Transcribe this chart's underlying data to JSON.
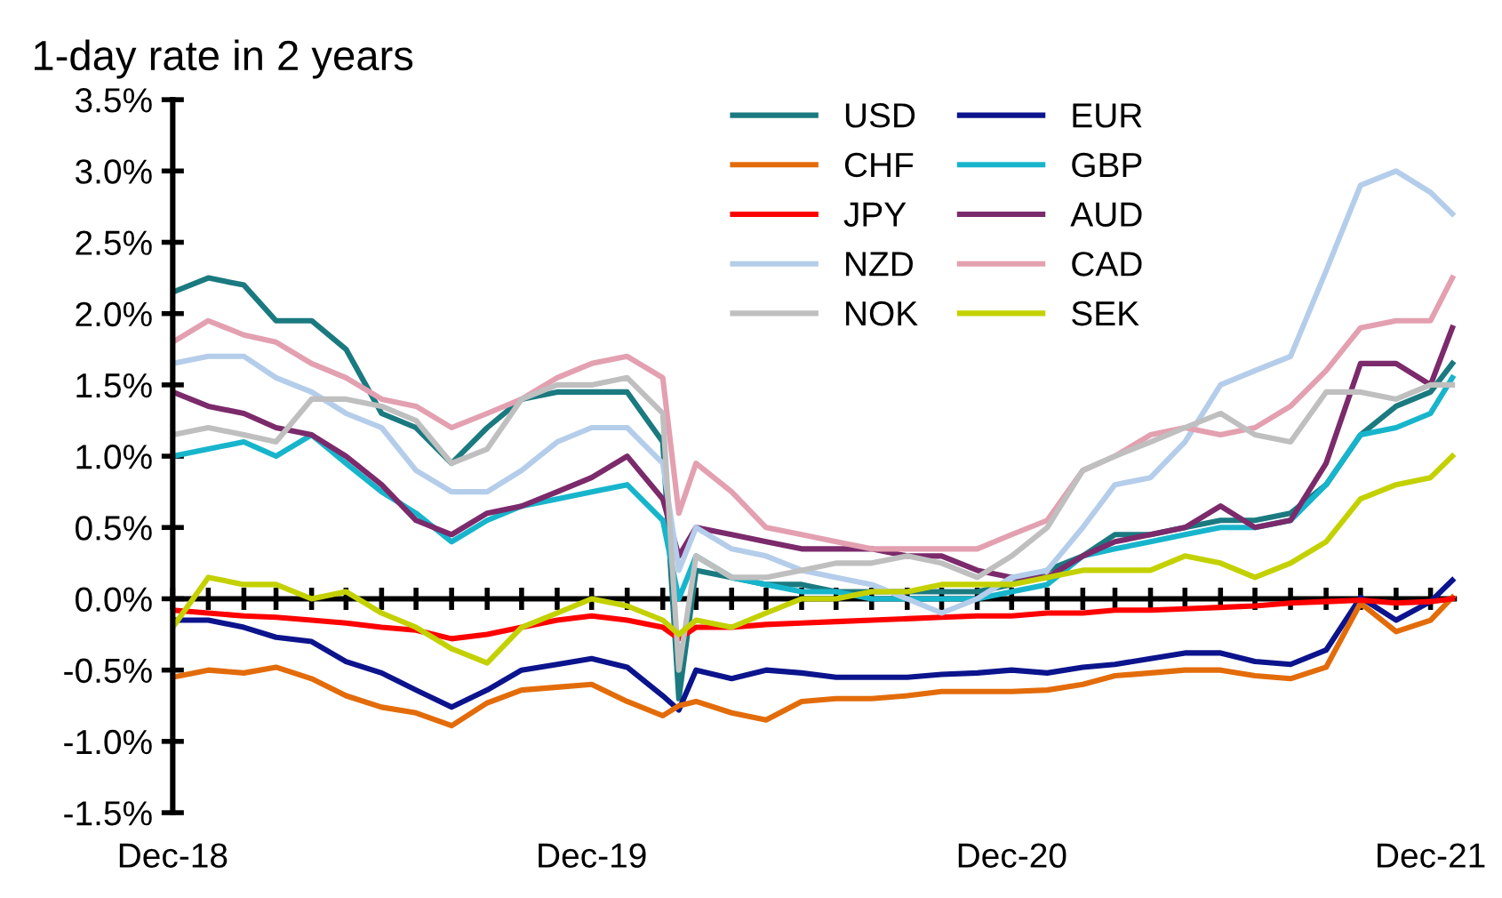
{
  "chart_data": {
    "type": "line",
    "title": "1-day rate in 2 years",
    "x": [
      "2018-12-01",
      "2019-01-01",
      "2019-02-01",
      "2019-03-01",
      "2019-04-01",
      "2019-05-01",
      "2019-06-01",
      "2019-07-01",
      "2019-08-01",
      "2019-09-01",
      "2019-10-01",
      "2019-11-01",
      "2019-12-01",
      "2020-01-01",
      "2020-02-01",
      "2020-02-15",
      "2020-03-01",
      "2020-04-01",
      "2020-05-01",
      "2020-06-01",
      "2020-07-01",
      "2020-08-01",
      "2020-09-01",
      "2020-10-01",
      "2020-11-01",
      "2020-12-01",
      "2021-01-01",
      "2021-02-01",
      "2021-03-01",
      "2021-04-01",
      "2021-05-01",
      "2021-06-01",
      "2021-07-01",
      "2021-08-01",
      "2021-09-01",
      "2021-10-01",
      "2021-11-01",
      "2021-12-01",
      "2021-12-20"
    ],
    "series": [
      {
        "name": "USD",
        "color": "#1a7a80",
        "values": [
          2.15,
          2.25,
          2.2,
          1.95,
          1.95,
          1.75,
          1.3,
          1.2,
          0.95,
          1.2,
          1.4,
          1.45,
          1.45,
          1.45,
          1.1,
          -0.7,
          0.2,
          0.15,
          0.1,
          0.1,
          0.05,
          0.05,
          0.05,
          0.05,
          0.05,
          0.1,
          0.2,
          0.3,
          0.45,
          0.45,
          0.5,
          0.55,
          0.55,
          0.6,
          0.8,
          1.15,
          1.35,
          1.45,
          1.65
        ]
      },
      {
        "name": "EUR",
        "color": "#0b148c",
        "values": [
          -0.15,
          -0.15,
          -0.2,
          -0.27,
          -0.3,
          -0.44,
          -0.52,
          -0.64,
          -0.76,
          -0.64,
          -0.5,
          -0.46,
          -0.42,
          -0.48,
          -0.68,
          -0.78,
          -0.5,
          -0.56,
          -0.5,
          -0.52,
          -0.55,
          -0.55,
          -0.55,
          -0.53,
          -0.52,
          -0.5,
          -0.52,
          -0.48,
          -0.46,
          -0.42,
          -0.38,
          -0.38,
          -0.44,
          -0.46,
          -0.36,
          0.01,
          -0.15,
          -0.02,
          0.13
        ]
      },
      {
        "name": "CHF",
        "color": "#e36c0a",
        "values": [
          -0.55,
          -0.5,
          -0.52,
          -0.48,
          -0.56,
          -0.68,
          -0.76,
          -0.8,
          -0.89,
          -0.73,
          -0.64,
          -0.62,
          -0.6,
          -0.72,
          -0.82,
          -0.75,
          -0.72,
          -0.8,
          -0.85,
          -0.72,
          -0.7,
          -0.7,
          -0.68,
          -0.65,
          -0.65,
          -0.65,
          -0.64,
          -0.6,
          -0.54,
          -0.52,
          -0.5,
          -0.5,
          -0.54,
          -0.56,
          -0.48,
          -0.03,
          -0.23,
          -0.15,
          0.01
        ]
      },
      {
        "name": "GBP",
        "color": "#17b5cc",
        "values": [
          1.0,
          1.05,
          1.1,
          1.0,
          1.15,
          0.95,
          0.75,
          0.6,
          0.4,
          0.55,
          0.65,
          0.7,
          0.75,
          0.8,
          0.55,
          0.0,
          0.3,
          0.15,
          0.1,
          0.05,
          0.05,
          0.0,
          0.0,
          0.0,
          0.0,
          0.05,
          0.1,
          0.3,
          0.35,
          0.4,
          0.45,
          0.5,
          0.5,
          0.55,
          0.8,
          1.15,
          1.2,
          1.3,
          1.55
        ]
      },
      {
        "name": "JPY",
        "color": "#ff0000",
        "values": [
          -0.08,
          -0.1,
          -0.12,
          -0.13,
          -0.15,
          -0.17,
          -0.2,
          -0.22,
          -0.28,
          -0.25,
          -0.2,
          -0.15,
          -0.12,
          -0.15,
          -0.2,
          -0.28,
          -0.2,
          -0.2,
          -0.18,
          -0.17,
          -0.16,
          -0.15,
          -0.14,
          -0.13,
          -0.12,
          -0.12,
          -0.1,
          -0.1,
          -0.08,
          -0.08,
          -0.07,
          -0.06,
          -0.05,
          -0.03,
          -0.02,
          -0.01,
          -0.03,
          -0.02,
          0.0
        ]
      },
      {
        "name": "AUD",
        "color": "#7b2a6b",
        "values": [
          1.45,
          1.35,
          1.3,
          1.2,
          1.15,
          1.0,
          0.8,
          0.55,
          0.45,
          0.6,
          0.65,
          0.75,
          0.85,
          1.0,
          0.7,
          0.3,
          0.5,
          0.45,
          0.4,
          0.35,
          0.35,
          0.35,
          0.3,
          0.3,
          0.2,
          0.15,
          0.15,
          0.3,
          0.4,
          0.45,
          0.5,
          0.65,
          0.5,
          0.55,
          0.95,
          1.65,
          1.65,
          1.5,
          1.9
        ]
      },
      {
        "name": "NZD",
        "color": "#b4cdea",
        "values": [
          1.65,
          1.7,
          1.7,
          1.55,
          1.45,
          1.3,
          1.2,
          0.9,
          0.75,
          0.75,
          0.9,
          1.1,
          1.2,
          1.2,
          0.95,
          0.2,
          0.5,
          0.35,
          0.3,
          0.2,
          0.15,
          0.1,
          0.0,
          -0.1,
          0.0,
          0.15,
          0.2,
          0.5,
          0.8,
          0.85,
          1.1,
          1.5,
          1.6,
          1.7,
          2.3,
          2.9,
          3.0,
          2.85,
          2.7
        ]
      },
      {
        "name": "CAD",
        "color": "#e3a0b0",
        "values": [
          1.8,
          1.95,
          1.85,
          1.8,
          1.65,
          1.55,
          1.4,
          1.35,
          1.2,
          1.3,
          1.4,
          1.55,
          1.65,
          1.7,
          1.55,
          0.6,
          0.95,
          0.75,
          0.5,
          0.45,
          0.4,
          0.35,
          0.35,
          0.35,
          0.35,
          0.45,
          0.55,
          0.9,
          1.0,
          1.15,
          1.2,
          1.15,
          1.2,
          1.35,
          1.6,
          1.9,
          1.95,
          1.95,
          2.25
        ]
      },
      {
        "name": "NOK",
        "color": "#bfbfbf",
        "values": [
          1.15,
          1.2,
          1.15,
          1.1,
          1.4,
          1.4,
          1.35,
          1.25,
          0.95,
          1.05,
          1.4,
          1.5,
          1.5,
          1.55,
          1.3,
          -0.5,
          0.3,
          0.15,
          0.15,
          0.2,
          0.25,
          0.25,
          0.3,
          0.25,
          0.15,
          0.3,
          0.5,
          0.9,
          1.0,
          1.1,
          1.2,
          1.3,
          1.15,
          1.1,
          1.45,
          1.45,
          1.4,
          1.5,
          1.5
        ]
      },
      {
        "name": "SEK",
        "color": "#c4d100",
        "values": [
          -0.2,
          0.15,
          0.1,
          0.1,
          0.0,
          0.05,
          -0.1,
          -0.2,
          -0.35,
          -0.45,
          -0.2,
          -0.1,
          0.0,
          -0.05,
          -0.15,
          -0.25,
          -0.15,
          -0.2,
          -0.1,
          0.0,
          0.0,
          0.05,
          0.05,
          0.1,
          0.1,
          0.1,
          0.15,
          0.2,
          0.2,
          0.2,
          0.3,
          0.25,
          0.15,
          0.25,
          0.4,
          0.7,
          0.8,
          0.85,
          1.0
        ]
      }
    ],
    "xlim": [
      "2018-12-01",
      "2021-12-24"
    ],
    "xticks": [
      {
        "value": "2018-12-01",
        "label": "Dec-18"
      },
      {
        "value": "2019-01-01",
        "label": null
      },
      {
        "value": "2019-02-01",
        "label": null
      },
      {
        "value": "2019-03-01",
        "label": null
      },
      {
        "value": "2019-04-01",
        "label": null
      },
      {
        "value": "2019-05-01",
        "label": null
      },
      {
        "value": "2019-06-01",
        "label": null
      },
      {
        "value": "2019-07-01",
        "label": null
      },
      {
        "value": "2019-08-01",
        "label": null
      },
      {
        "value": "2019-09-01",
        "label": null
      },
      {
        "value": "2019-10-01",
        "label": null
      },
      {
        "value": "2019-11-01",
        "label": null
      },
      {
        "value": "2019-12-01",
        "label": "Dec-19"
      },
      {
        "value": "2020-01-01",
        "label": null
      },
      {
        "value": "2020-02-01",
        "label": null
      },
      {
        "value": "2020-03-01",
        "label": null
      },
      {
        "value": "2020-04-01",
        "label": null
      },
      {
        "value": "2020-05-01",
        "label": null
      },
      {
        "value": "2020-06-01",
        "label": null
      },
      {
        "value": "2020-07-01",
        "label": null
      },
      {
        "value": "2020-08-01",
        "label": null
      },
      {
        "value": "2020-09-01",
        "label": null
      },
      {
        "value": "2020-10-01",
        "label": null
      },
      {
        "value": "2020-11-01",
        "label": null
      },
      {
        "value": "2020-12-01",
        "label": "Dec-20"
      },
      {
        "value": "2021-01-01",
        "label": null
      },
      {
        "value": "2021-02-01",
        "label": null
      },
      {
        "value": "2021-03-01",
        "label": null
      },
      {
        "value": "2021-04-01",
        "label": null
      },
      {
        "value": "2021-05-01",
        "label": null
      },
      {
        "value": "2021-06-01",
        "label": null
      },
      {
        "value": "2021-07-01",
        "label": null
      },
      {
        "value": "2021-08-01",
        "label": null
      },
      {
        "value": "2021-09-01",
        "label": null
      },
      {
        "value": "2021-10-01",
        "label": null
      },
      {
        "value": "2021-11-01",
        "label": null
      },
      {
        "value": "2021-12-01",
        "label": "Dec-21"
      }
    ],
    "ylim": [
      -1.5,
      3.5
    ],
    "yticks": [
      {
        "value": -1.5,
        "label": "-1.5%"
      },
      {
        "value": -1.0,
        "label": "-1.0%"
      },
      {
        "value": -0.5,
        "label": "-0.5%"
      },
      {
        "value": 0.0,
        "label": "0.0%"
      },
      {
        "value": 0.5,
        "label": "0.5%"
      },
      {
        "value": 1.0,
        "label": "1.0%"
      },
      {
        "value": 1.5,
        "label": "1.5%"
      },
      {
        "value": 2.0,
        "label": "2.0%"
      },
      {
        "value": 2.5,
        "label": "2.5%"
      },
      {
        "value": 3.0,
        "label": "3.0%"
      },
      {
        "value": 3.5,
        "label": "3.5%"
      }
    ],
    "ref_lines": [
      {
        "axis": "y",
        "value": 0,
        "color": "#000000",
        "line_style": "solid"
      }
    ],
    "grid": false,
    "legend": "top right",
    "marker": "none",
    "line_style": "solid"
  }
}
